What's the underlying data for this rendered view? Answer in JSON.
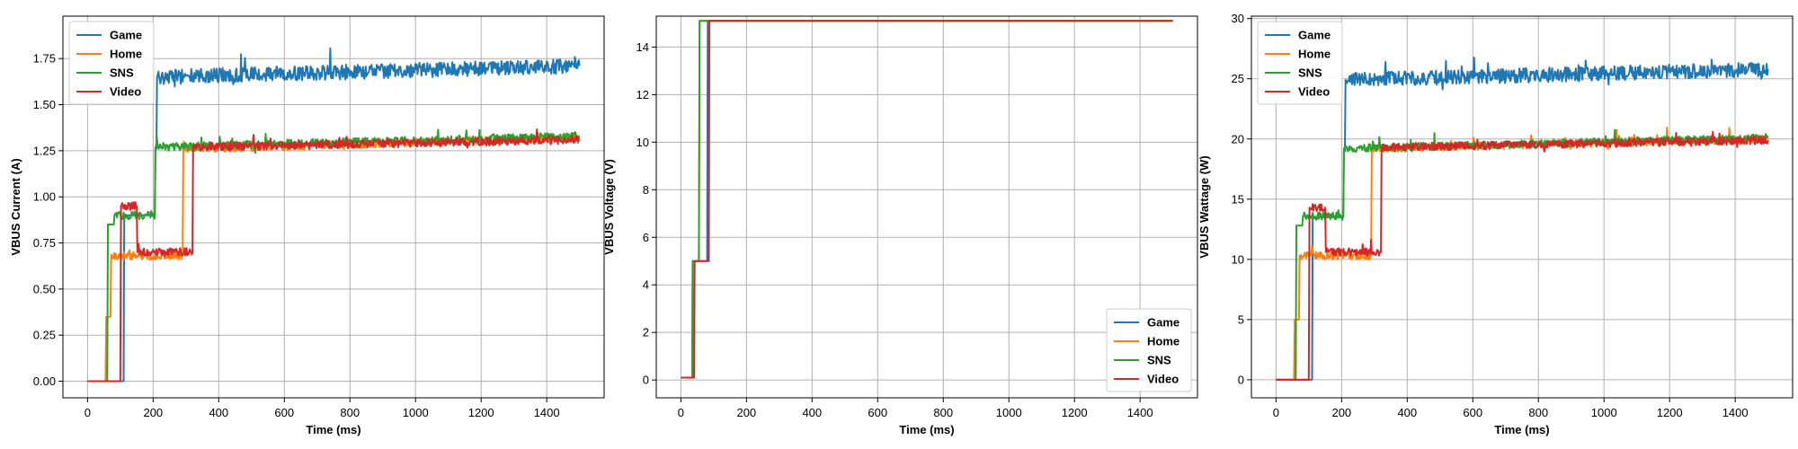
{
  "series_styles": [
    {
      "name": "Game",
      "color": "#1f77b4"
    },
    {
      "name": "Home",
      "color": "#ff7f0e"
    },
    {
      "name": "SNS",
      "color": "#2ca02c"
    },
    {
      "name": "Video",
      "color": "#d62728"
    }
  ],
  "chart_data": [
    {
      "type": "line",
      "ylabel": "VBUS Current (A)",
      "xlabel": "Time (ms)",
      "xlim": [
        -75,
        1575
      ],
      "ylim": [
        -0.09,
        1.98
      ],
      "xticks": [
        0,
        200,
        400,
        600,
        800,
        1000,
        1200,
        1400
      ],
      "yticks": [
        0.0,
        0.25,
        0.5,
        0.75,
        1.0,
        1.25,
        1.5,
        1.75
      ],
      "ytick_decimals": 2,
      "grid": true,
      "legend": "upper-left",
      "series": [
        {
          "name": "Game",
          "segments": [
            [
              0,
              0.0
            ],
            [
              110,
              0.0
            ],
            [
              112,
              0.9
            ],
            [
              205,
              0.9
            ],
            [
              207,
              1.26
            ],
            [
              210,
              1.26
            ],
            [
              212,
              1.65
            ],
            [
              1500,
              1.71
            ]
          ],
          "noise": 0.04,
          "noise_from": 212
        },
        {
          "name": "Home",
          "segments": [
            [
              0,
              0.0
            ],
            [
              55,
              0.0
            ],
            [
              57,
              0.35
            ],
            [
              70,
              0.35
            ],
            [
              72,
              0.68
            ],
            [
              290,
              0.68
            ],
            [
              292,
              1.26
            ],
            [
              1500,
              1.32
            ]
          ],
          "noise": 0.022,
          "noise_from": 72
        },
        {
          "name": "SNS",
          "segments": [
            [
              0,
              0.0
            ],
            [
              60,
              0.0
            ],
            [
              62,
              0.85
            ],
            [
              80,
              0.85
            ],
            [
              82,
              0.9
            ],
            [
              205,
              0.9
            ],
            [
              207,
              1.27
            ],
            [
              1500,
              1.33
            ]
          ],
          "noise": 0.022,
          "noise_from": 82
        },
        {
          "name": "Video",
          "segments": [
            [
              0,
              0.0
            ],
            [
              100,
              0.0
            ],
            [
              102,
              0.95
            ],
            [
              150,
              0.95
            ],
            [
              152,
              0.7
            ],
            [
              320,
              0.7
            ],
            [
              322,
              1.27
            ],
            [
              1500,
              1.31
            ]
          ],
          "noise": 0.022,
          "noise_from": 102
        }
      ]
    },
    {
      "type": "line",
      "ylabel": "VBUS Voltage (V)",
      "xlabel": "Time (ms)",
      "xlim": [
        -75,
        1575
      ],
      "ylim": [
        -0.75,
        15.3
      ],
      "xticks": [
        0,
        200,
        400,
        600,
        800,
        1000,
        1200,
        1400
      ],
      "yticks": [
        0,
        2,
        4,
        6,
        8,
        10,
        12,
        14
      ],
      "ytick_decimals": 0,
      "grid": true,
      "legend": "lower-right",
      "series": [
        {
          "name": "Game",
          "segments": [
            [
              0,
              0.1
            ],
            [
              35,
              0.1
            ],
            [
              36,
              5.0
            ],
            [
              80,
              5.0
            ],
            [
              82,
              15.1
            ],
            [
              1500,
              15.1
            ]
          ],
          "noise": 0,
          "noise_from": 0
        },
        {
          "name": "Home",
          "segments": [
            [
              0,
              0.1
            ],
            [
              35,
              0.1
            ],
            [
              36,
              5.0
            ],
            [
              55,
              5.0
            ],
            [
              57,
              15.1
            ],
            [
              1500,
              15.1
            ]
          ],
          "noise": 0,
          "noise_from": 0
        },
        {
          "name": "SNS",
          "segments": [
            [
              0,
              0.1
            ],
            [
              35,
              0.1
            ],
            [
              36,
              5.0
            ],
            [
              55,
              5.0
            ],
            [
              57,
              15.1
            ],
            [
              1500,
              15.1
            ]
          ],
          "noise": 0,
          "noise_from": 0
        },
        {
          "name": "Video",
          "segments": [
            [
              0,
              0.1
            ],
            [
              40,
              0.1
            ],
            [
              42,
              5.0
            ],
            [
              85,
              5.0
            ],
            [
              87,
              15.1
            ],
            [
              1500,
              15.1
            ]
          ],
          "noise": 0,
          "noise_from": 0
        }
      ]
    },
    {
      "type": "line",
      "ylabel": "VBUS Wattage (W)",
      "xlabel": "Time (ms)",
      "xlim": [
        -75,
        1575
      ],
      "ylim": [
        -1.5,
        30.2
      ],
      "xticks": [
        0,
        200,
        400,
        600,
        800,
        1000,
        1200,
        1400
      ],
      "yticks": [
        0,
        5,
        10,
        15,
        20,
        25,
        30
      ],
      "ytick_decimals": 0,
      "grid": true,
      "legend": "upper-left",
      "series": [
        {
          "name": "Game",
          "segments": [
            [
              0,
              0.0
            ],
            [
              110,
              0.0
            ],
            [
              112,
              13.5
            ],
            [
              205,
              13.5
            ],
            [
              207,
              19.0
            ],
            [
              210,
              19.0
            ],
            [
              212,
              24.9
            ],
            [
              1500,
              25.8
            ]
          ],
          "noise": 0.6,
          "noise_from": 212
        },
        {
          "name": "Home",
          "segments": [
            [
              0,
              0.0
            ],
            [
              55,
              0.0
            ],
            [
              57,
              5.0
            ],
            [
              70,
              5.0
            ],
            [
              72,
              10.3
            ],
            [
              290,
              10.3
            ],
            [
              292,
              19.2
            ],
            [
              1500,
              20.0
            ]
          ],
          "noise": 0.33,
          "noise_from": 72
        },
        {
          "name": "SNS",
          "segments": [
            [
              0,
              0.0
            ],
            [
              60,
              0.0
            ],
            [
              62,
              12.8
            ],
            [
              80,
              12.8
            ],
            [
              82,
              13.6
            ],
            [
              205,
              13.6
            ],
            [
              207,
              19.2
            ],
            [
              1500,
              20.1
            ]
          ],
          "noise": 0.33,
          "noise_from": 82
        },
        {
          "name": "Video",
          "segments": [
            [
              0,
              0.0
            ],
            [
              100,
              0.0
            ],
            [
              102,
              14.3
            ],
            [
              150,
              14.3
            ],
            [
              152,
              10.6
            ],
            [
              320,
              10.6
            ],
            [
              322,
              19.3
            ],
            [
              1500,
              19.9
            ]
          ],
          "noise": 0.33,
          "noise_from": 102
        }
      ]
    }
  ]
}
